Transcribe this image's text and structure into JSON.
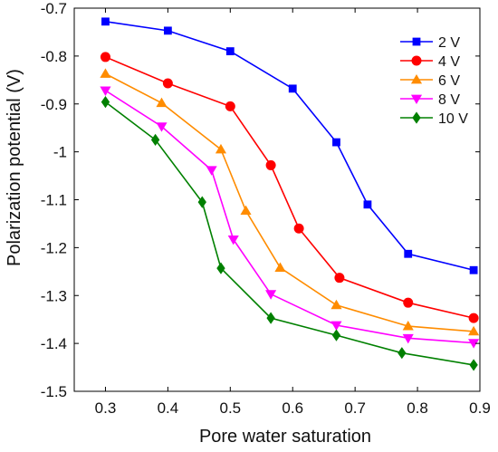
{
  "chart_data": {
    "type": "line",
    "title": "",
    "xlabel": "Pore water saturation",
    "ylabel": "Polarization potential (V)",
    "xlim": [
      0.25,
      0.9
    ],
    "ylim": [
      -1.5,
      -0.7
    ],
    "xticks": [
      0.3,
      0.4,
      0.5,
      0.6,
      0.7,
      0.8,
      0.9
    ],
    "xtick_labels": [
      "0.3",
      "0.4",
      "0.5",
      "0.6",
      "0.7",
      "0.8",
      "0.9"
    ],
    "yticks": [
      -0.7,
      -0.8,
      -0.9,
      -1.0,
      -1.1,
      -1.2,
      -1.3,
      -1.4,
      -1.5
    ],
    "ytick_labels": [
      "-0.7",
      "-0.8",
      "-0.9",
      "-1",
      "-1.1",
      "-1.2",
      "-1.3",
      "-1.4",
      "-1.5"
    ],
    "grid": false,
    "legend_position": "top-right",
    "series": [
      {
        "name": "2 V",
        "color": "#0000ff",
        "marker": "square",
        "x": [
          0.3,
          0.4,
          0.5,
          0.6,
          0.67,
          0.72,
          0.785,
          0.89
        ],
        "y": [
          -0.728,
          -0.747,
          -0.79,
          -0.868,
          -0.98,
          -1.11,
          -1.213,
          -1.247
        ]
      },
      {
        "name": "4 V",
        "color": "#ff0000",
        "marker": "circle",
        "x": [
          0.3,
          0.4,
          0.5,
          0.565,
          0.61,
          0.675,
          0.785,
          0.89
        ],
        "y": [
          -0.802,
          -0.857,
          -0.905,
          -1.028,
          -1.16,
          -1.263,
          -1.315,
          -1.347
        ]
      },
      {
        "name": "6 V",
        "color": "#ff8c00",
        "marker": "triangle-up",
        "x": [
          0.3,
          0.39,
          0.485,
          0.525,
          0.58,
          0.67,
          0.785,
          0.89
        ],
        "y": [
          -0.837,
          -0.898,
          -0.995,
          -1.123,
          -1.242,
          -1.32,
          -1.364,
          -1.375
        ]
      },
      {
        "name": "8 V",
        "color": "#ff00ff",
        "marker": "triangle-down",
        "x": [
          0.3,
          0.39,
          0.47,
          0.505,
          0.565,
          0.67,
          0.785,
          0.89
        ],
        "y": [
          -0.872,
          -0.947,
          -1.038,
          -1.183,
          -1.297,
          -1.362,
          -1.389,
          -1.399
        ]
      },
      {
        "name": "10 V",
        "color": "#008000",
        "marker": "diamond",
        "x": [
          0.3,
          0.38,
          0.455,
          0.485,
          0.565,
          0.67,
          0.775,
          0.89
        ],
        "y": [
          -0.896,
          -0.975,
          -1.105,
          -1.243,
          -1.347,
          -1.383,
          -1.42,
          -1.445
        ]
      }
    ]
  }
}
